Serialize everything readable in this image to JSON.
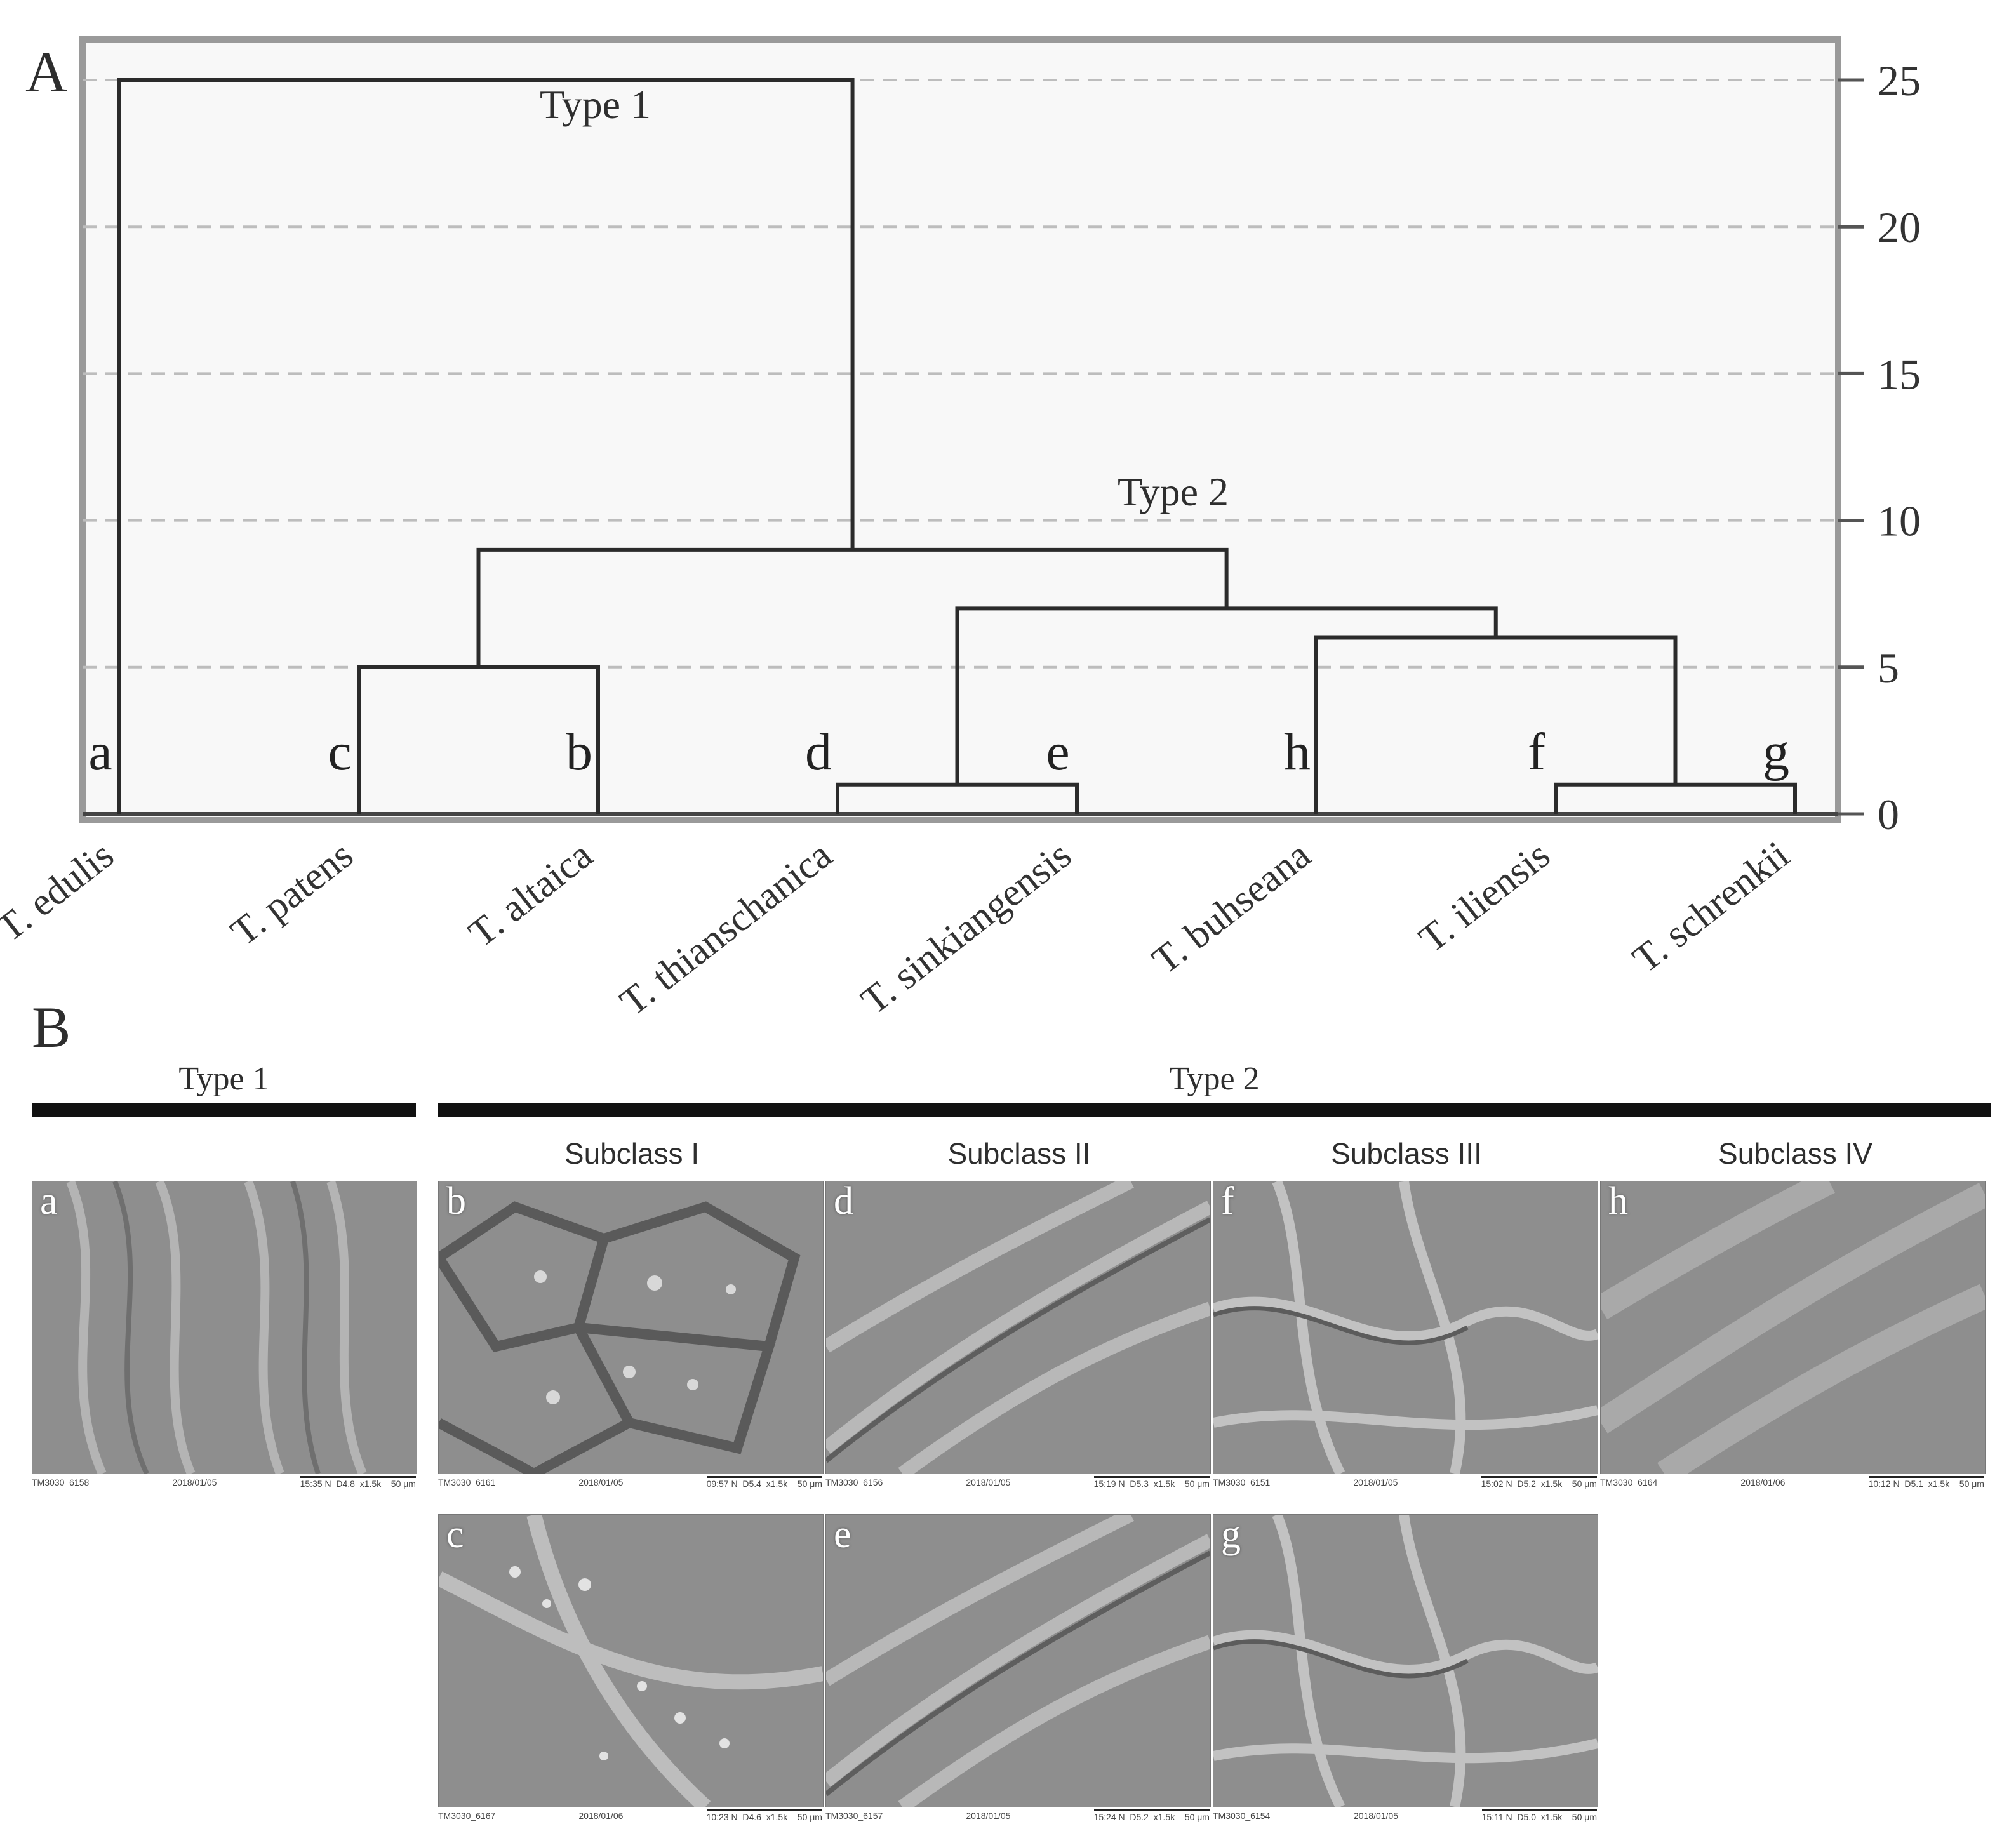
{
  "panel_a": {
    "letter": "A",
    "type1_label": "Type 1",
    "type2_label": "Type 2",
    "axis_ticks": [
      "0",
      "5",
      "10",
      "15",
      "20",
      "25"
    ],
    "chart_data": {
      "type": "dendrogram",
      "y_axis": {
        "range": [
          0,
          25
        ],
        "ticks": [
          0,
          5,
          10,
          15,
          20,
          25
        ],
        "position": "right"
      },
      "grid": "dashed horizontal",
      "leaves": [
        {
          "letter": "a",
          "name": "T. edulis"
        },
        {
          "letter": "c",
          "name": "T. patens"
        },
        {
          "letter": "b",
          "name": "T. altaica"
        },
        {
          "letter": "d",
          "name": "T. thianschanica"
        },
        {
          "letter": "e",
          "name": "T. sinkiangensis"
        },
        {
          "letter": "h",
          "name": "T. buhseana"
        },
        {
          "letter": "f",
          "name": "T. iliensis"
        },
        {
          "letter": "g",
          "name": "T. schrenkii"
        }
      ],
      "merges": [
        {
          "id": "de",
          "left": "d",
          "right": "e",
          "height": 1
        },
        {
          "id": "fg",
          "left": "f",
          "right": "g",
          "height": 1
        },
        {
          "id": "cb",
          "left": "c",
          "right": "b",
          "height": 5
        },
        {
          "id": "hfg",
          "left": "h",
          "right": "fg",
          "height": 6
        },
        {
          "id": "dehfg",
          "left": "de",
          "right": "hfg",
          "height": 7
        },
        {
          "id": "type2",
          "left": "cb",
          "right": "dehfg",
          "height": 9
        },
        {
          "id": "root",
          "left": "a",
          "right": "type2",
          "height": 25
        }
      ]
    }
  },
  "panel_b": {
    "letter": "B",
    "type1_label": "Type 1",
    "type2_label": "Type 2",
    "subclasses": [
      "Subclass I",
      "Subclass II",
      "Subclass III",
      "Subclass IV"
    ],
    "micrographs": [
      {
        "letter": "a",
        "id": "TM3030_6158",
        "date": "2018/01/05",
        "time": "15:35 N",
        "wd": "D4.8",
        "mag": "x1.5k",
        "scale": "50 μm",
        "texture": "streaks"
      },
      {
        "letter": "b",
        "id": "TM3030_6161",
        "date": "2018/01/05",
        "time": "09:57 N",
        "wd": "D5.4",
        "mag": "x1.5k",
        "scale": "50 μm",
        "texture": "cells"
      },
      {
        "letter": "d",
        "id": "TM3030_6156",
        "date": "2018/01/05",
        "time": "15:19 N",
        "wd": "D5.3",
        "mag": "x1.5k",
        "scale": "50 μm",
        "texture": "ridges"
      },
      {
        "letter": "f",
        "id": "TM3030_6151",
        "date": "2018/01/05",
        "time": "15:02 N",
        "wd": "D5.2",
        "mag": "x1.5k",
        "scale": "50 μm",
        "texture": "wrinkles"
      },
      {
        "letter": "h",
        "id": "TM3030_6164",
        "date": "2018/01/06",
        "time": "10:12 N",
        "wd": "D5.1",
        "mag": "x1.5k",
        "scale": "50 μm",
        "texture": "smooth"
      },
      {
        "letter": "c",
        "id": "TM3030_6167",
        "date": "2018/01/06",
        "time": "10:23 N",
        "wd": "D4.6",
        "mag": "x1.5k",
        "scale": "50 μm",
        "texture": "speckle"
      },
      {
        "letter": "e",
        "id": "TM3030_6157",
        "date": "2018/01/05",
        "time": "15:24 N",
        "wd": "D5.2",
        "mag": "x1.5k",
        "scale": "50 μm",
        "texture": "ridges"
      },
      {
        "letter": "g",
        "id": "TM3030_6154",
        "date": "2018/01/05",
        "time": "15:11 N",
        "wd": "D5.0",
        "mag": "x1.5k",
        "scale": "50 μm",
        "texture": "wrinkles"
      }
    ]
  }
}
